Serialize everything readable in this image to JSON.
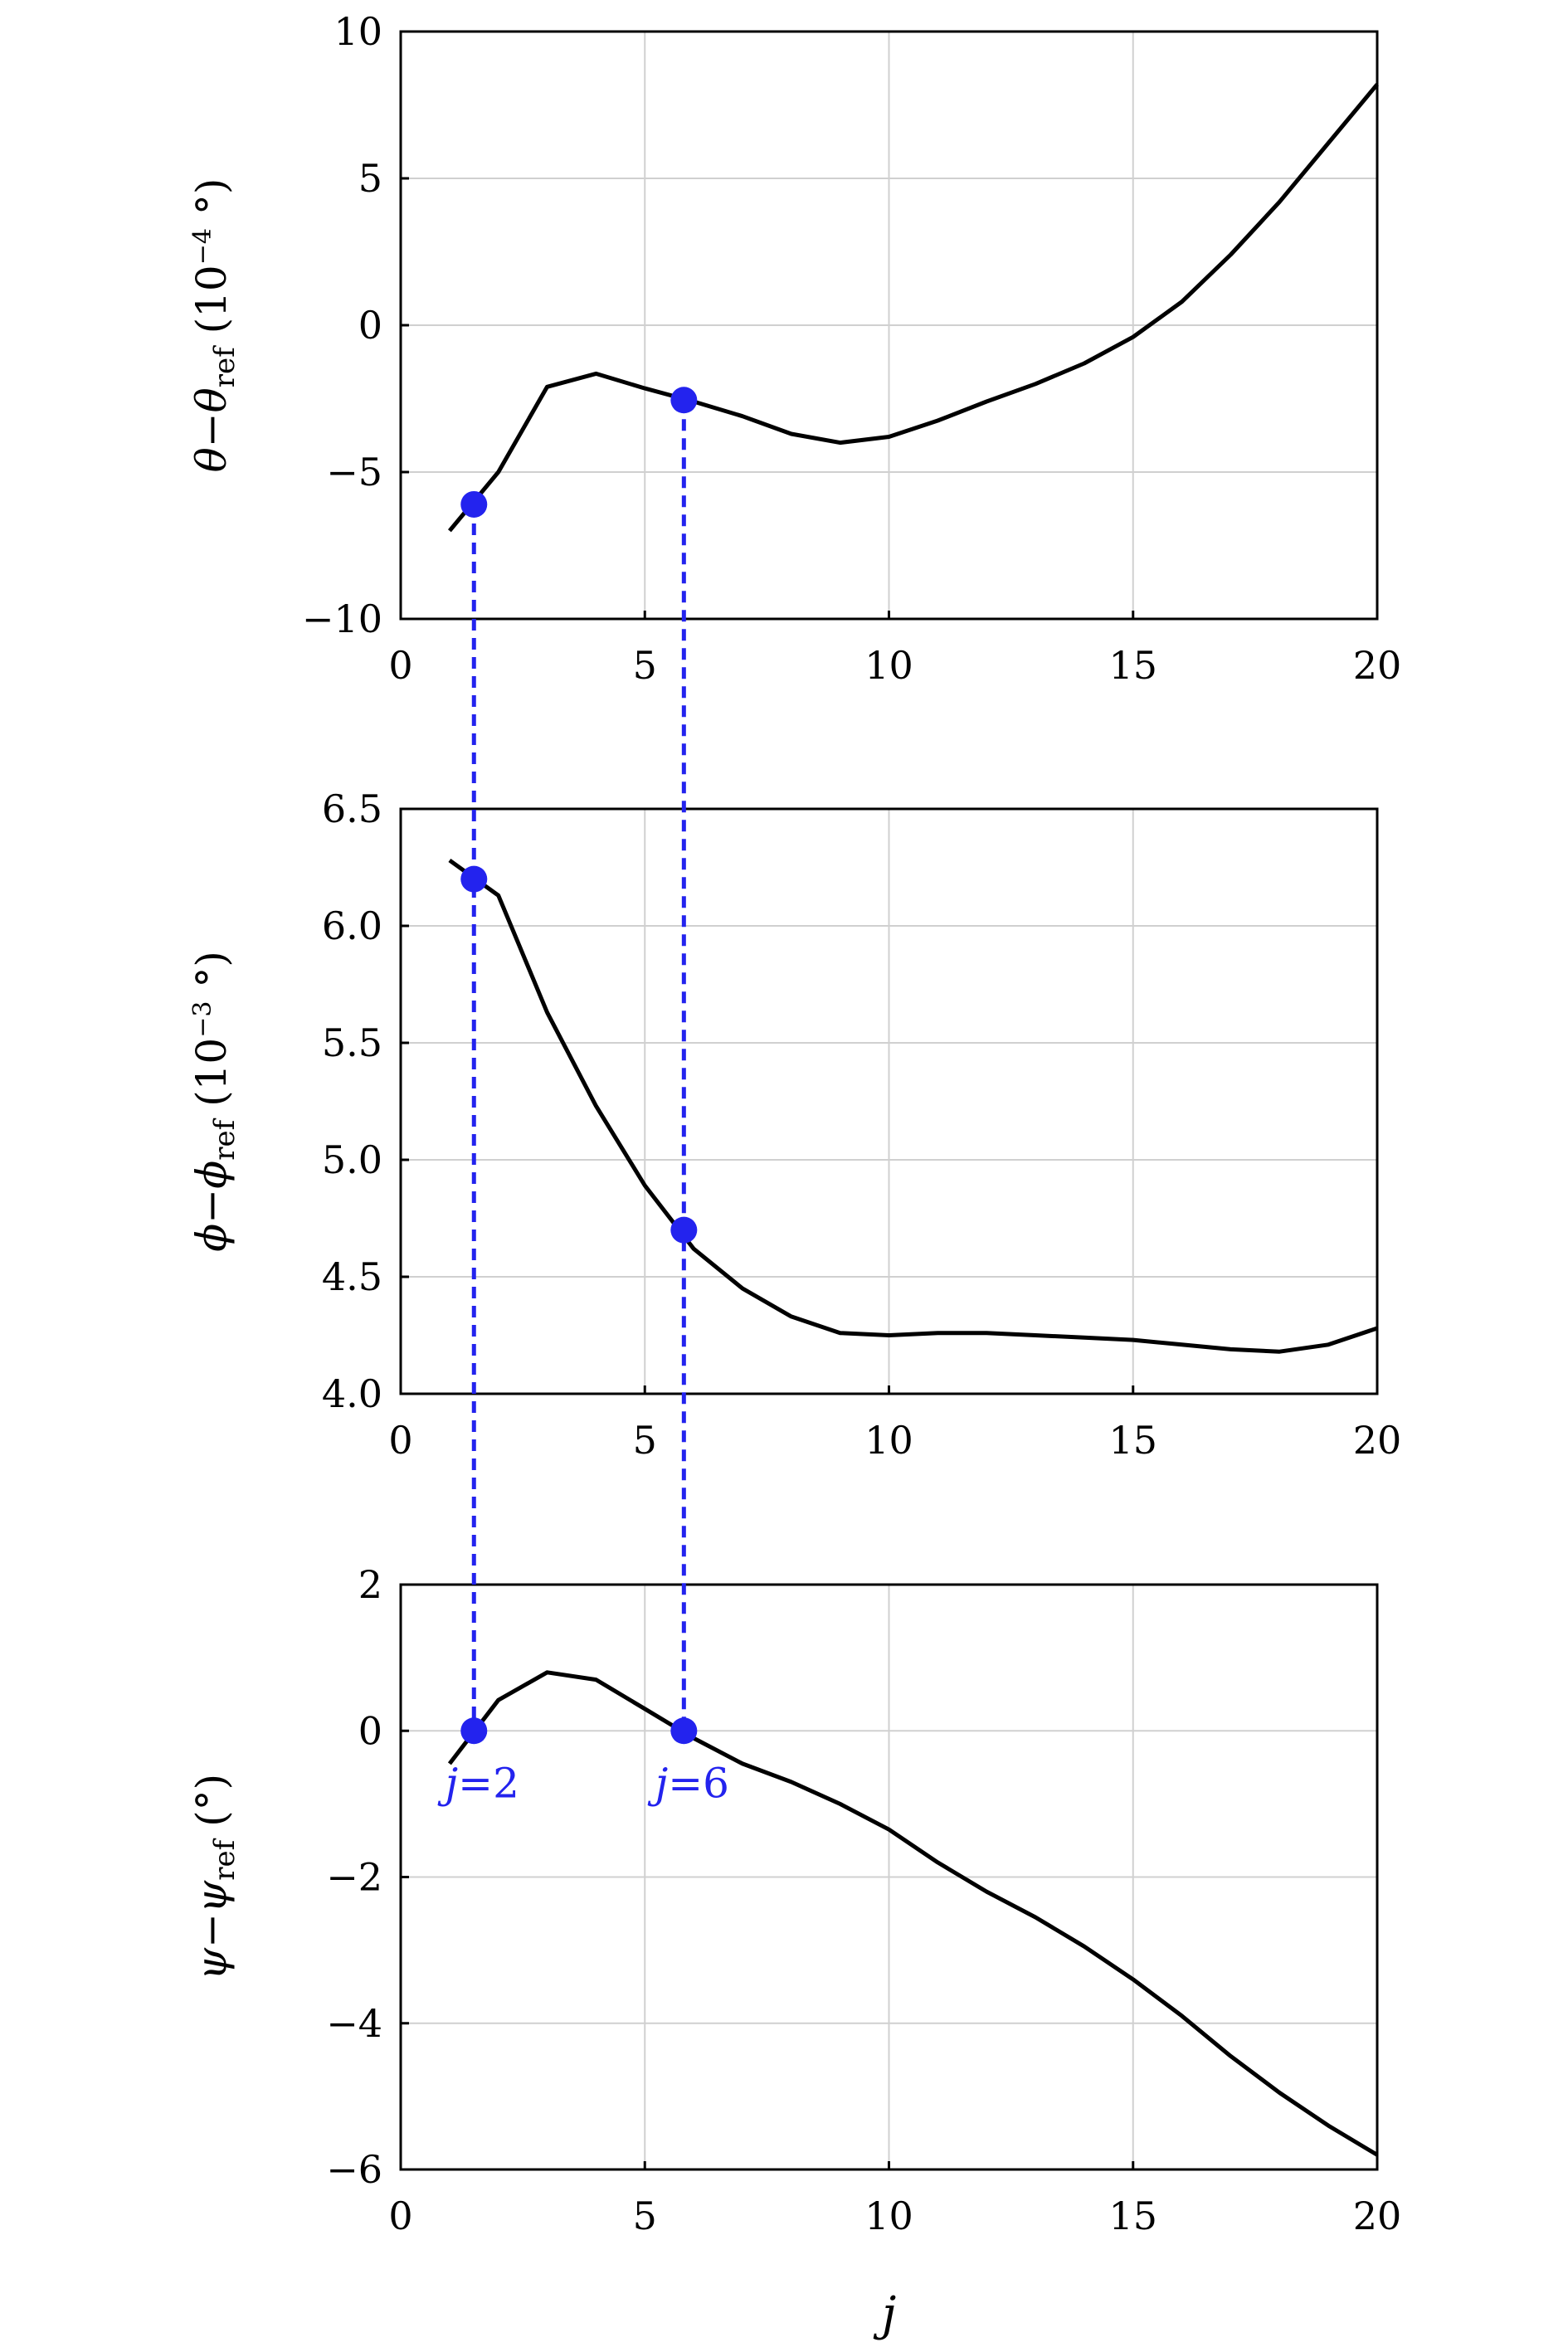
{
  "chart_data": [
    {
      "type": "line",
      "ylabel": {
        "symbol": "θ",
        "sub": "ref",
        "unit_base": "10",
        "unit_exp": "−4",
        "unit_suffix": " °"
      },
      "xlim": [
        0,
        20
      ],
      "ylim": [
        -10,
        10
      ],
      "xticks": [
        0,
        5,
        10,
        15,
        20
      ],
      "yticks": [
        -10,
        -5,
        0,
        5,
        10
      ],
      "xtick_labels": [
        "0",
        "5",
        "10",
        "15",
        "20"
      ],
      "ytick_labels": [
        "−10",
        "−5",
        "0",
        "5",
        "10"
      ],
      "grid": true,
      "series": [
        {
          "x": [
            1,
            2,
            3,
            4,
            5,
            6,
            7,
            8,
            9,
            10,
            11,
            12,
            13,
            14,
            15,
            16,
            17,
            18,
            19,
            20
          ],
          "y": [
            -7.0,
            -5.0,
            -2.1,
            -1.65,
            -2.15,
            -2.6,
            -3.1,
            -3.7,
            -4.0,
            -3.8,
            -3.25,
            -2.6,
            -2.0,
            -1.3,
            -0.4,
            0.8,
            2.4,
            4.2,
            6.2,
            8.2
          ]
        }
      ],
      "markers": [
        {
          "x": 1.5,
          "y": -6.1
        },
        {
          "x": 5.8,
          "y": -2.55
        }
      ]
    },
    {
      "type": "line",
      "ylabel": {
        "symbol": "ϕ",
        "sub": "ref",
        "unit_base": "10",
        "unit_exp": "−3",
        "unit_suffix": " °"
      },
      "xlim": [
        0,
        20
      ],
      "ylim": [
        4.0,
        6.5
      ],
      "xticks": [
        0,
        5,
        10,
        15,
        20
      ],
      "yticks": [
        4.0,
        4.5,
        5.0,
        5.5,
        6.0,
        6.5
      ],
      "xtick_labels": [
        "0",
        "5",
        "10",
        "15",
        "20"
      ],
      "ytick_labels": [
        "4.0",
        "4.5",
        "5.0",
        "5.5",
        "6.0",
        "6.5"
      ],
      "grid": true,
      "series": [
        {
          "x": [
            1,
            2,
            3,
            4,
            5,
            6,
            7,
            8,
            9,
            10,
            11,
            12,
            13,
            14,
            15,
            16,
            17,
            18,
            19,
            20
          ],
          "y": [
            6.28,
            6.13,
            5.63,
            5.23,
            4.89,
            4.62,
            4.45,
            4.33,
            4.26,
            4.25,
            4.26,
            4.26,
            4.25,
            4.24,
            4.23,
            4.21,
            4.19,
            4.18,
            4.21,
            4.28
          ]
        }
      ],
      "markers": [
        {
          "x": 1.5,
          "y": 6.2
        },
        {
          "x": 5.8,
          "y": 4.7
        }
      ]
    },
    {
      "type": "line",
      "ylabel": {
        "symbol": "ψ",
        "sub": "ref",
        "unit_base": "",
        "unit_exp": "",
        "unit_suffix": "°"
      },
      "xlabel": "j",
      "xlim": [
        0,
        20
      ],
      "ylim": [
        -6,
        2
      ],
      "xticks": [
        0,
        5,
        10,
        15,
        20
      ],
      "yticks": [
        -6,
        -4,
        -2,
        0,
        2
      ],
      "xtick_labels": [
        "0",
        "5",
        "10",
        "15",
        "20"
      ],
      "ytick_labels": [
        "−6",
        "−4",
        "−2",
        "0",
        "2"
      ],
      "grid": true,
      "series": [
        {
          "x": [
            1,
            2,
            3,
            4,
            5,
            6,
            7,
            8,
            9,
            10,
            11,
            12,
            13,
            14,
            15,
            16,
            17,
            18,
            19,
            20
          ],
          "y": [
            -0.45,
            0.42,
            0.8,
            0.7,
            0.3,
            -0.1,
            -0.45,
            -0.7,
            -1.0,
            -1.35,
            -1.8,
            -2.2,
            -2.55,
            -2.95,
            -3.4,
            -3.9,
            -4.45,
            -4.95,
            -5.4,
            -5.8
          ]
        }
      ],
      "markers": [
        {
          "x": 1.5,
          "y": 0
        },
        {
          "x": 5.8,
          "y": 0
        }
      ],
      "marker_labels": [
        {
          "x": 1.5,
          "italic": "j",
          "rest": "=2"
        },
        {
          "x": 5.8,
          "italic": "j",
          "rest": "=6"
        }
      ]
    }
  ]
}
